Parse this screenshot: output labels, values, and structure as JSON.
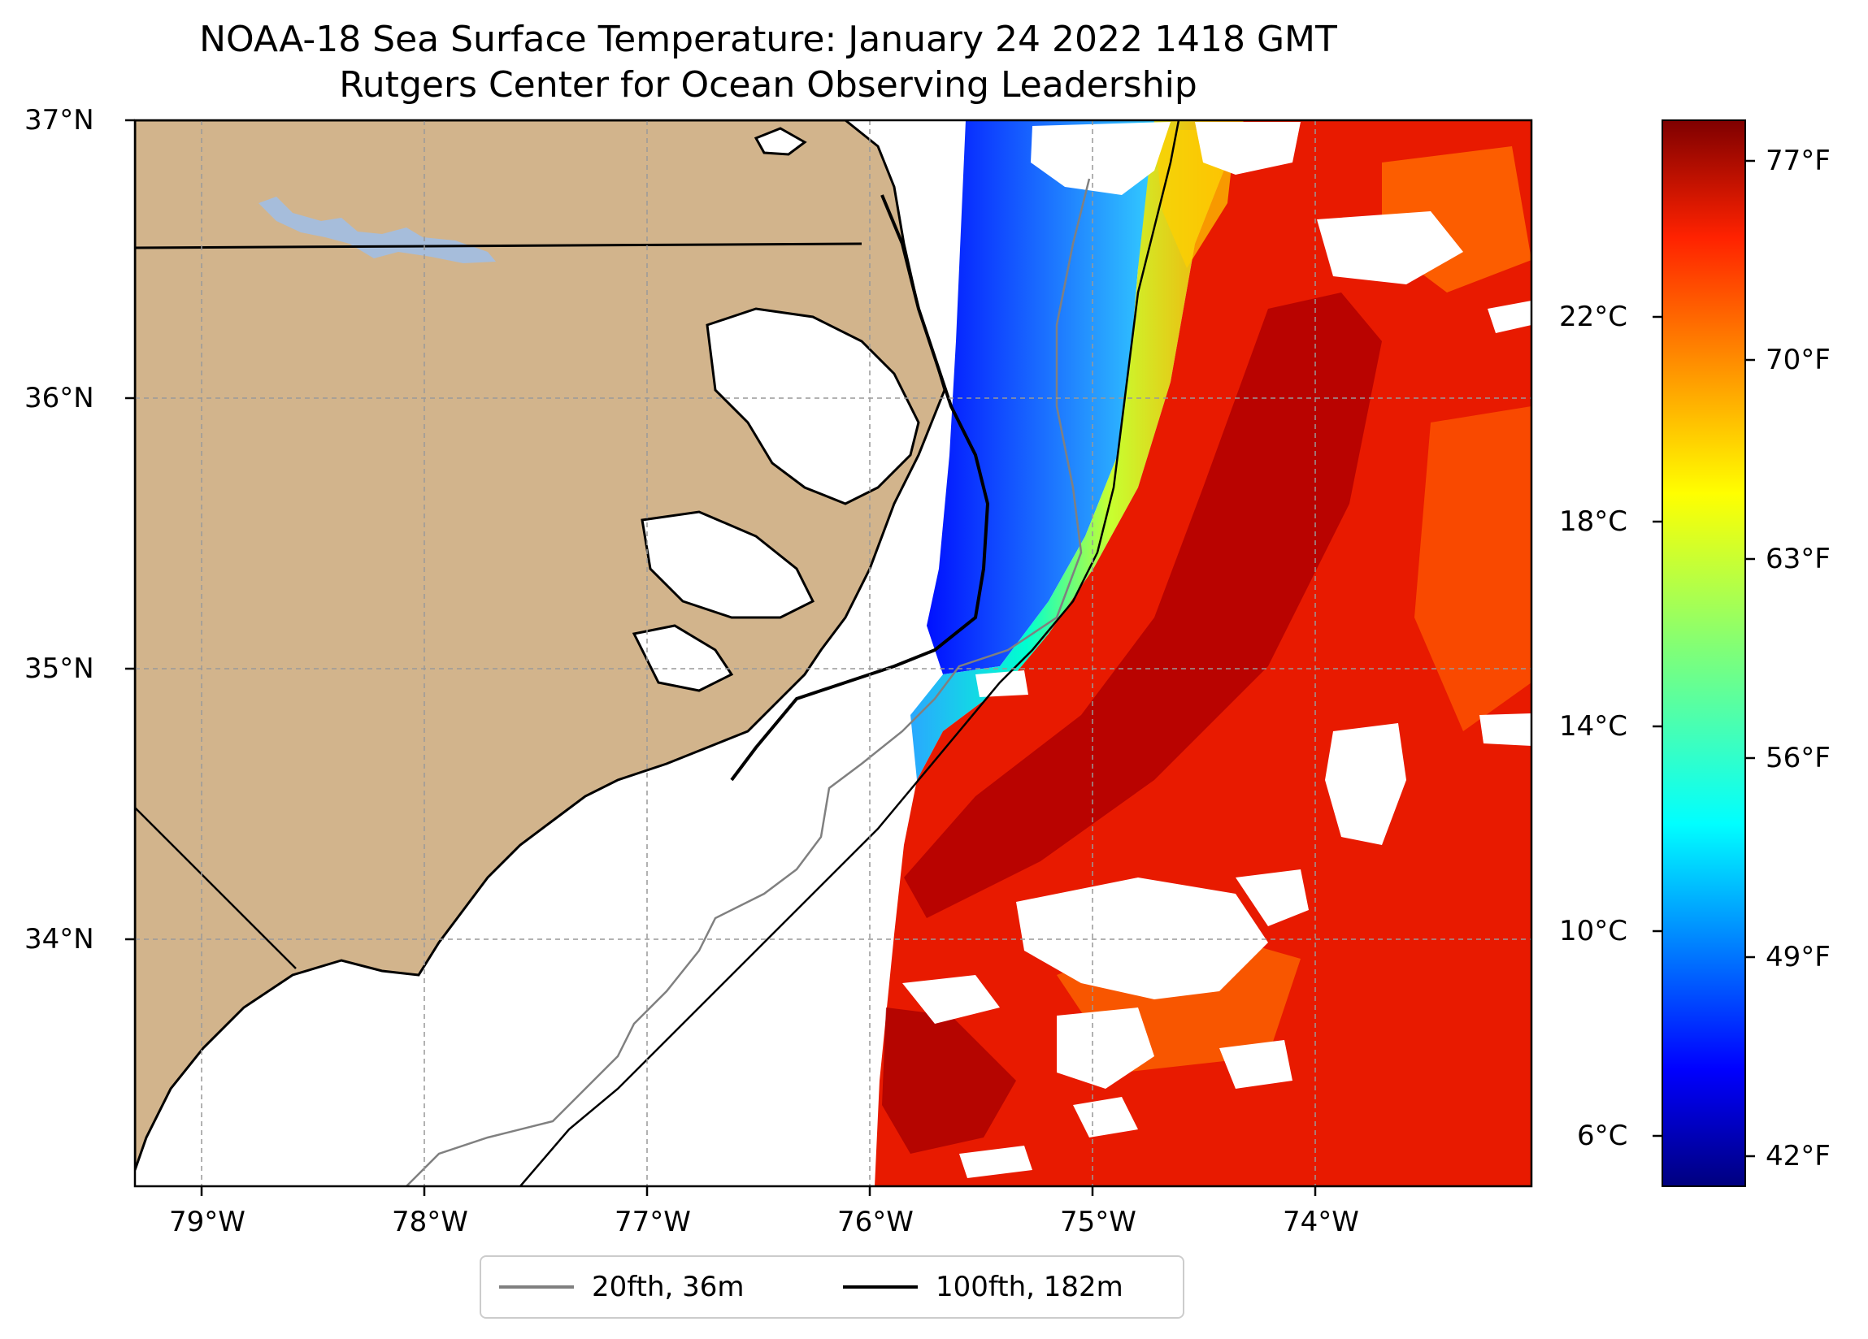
{
  "title": {
    "line1": "NOAA-18 Sea Surface Temperature: January 24 2022 1418 GMT",
    "line2": "Rutgers Center for Ocean Observing Leadership"
  },
  "map": {
    "lon_range": [
      -79.3,
      -73.1
    ],
    "lat_range": [
      33.1,
      37.0
    ],
    "lon_ticks": [
      {
        "value": -79,
        "label": "79°W"
      },
      {
        "value": -78,
        "label": "78°W"
      },
      {
        "value": -77,
        "label": "77°W"
      },
      {
        "value": -76,
        "label": "76°W"
      },
      {
        "value": -75,
        "label": "75°W"
      },
      {
        "value": -74,
        "label": "74°W"
      }
    ],
    "lat_ticks": [
      {
        "value": 37,
        "label": "37°N"
      },
      {
        "value": 36,
        "label": "36°N"
      },
      {
        "value": 35,
        "label": "35°N"
      },
      {
        "value": 34,
        "label": "34°N"
      }
    ],
    "gridlines": "dashed",
    "land_color": "#d2b48c",
    "water_body_color": "#a6bddb"
  },
  "colorbar": {
    "colormap": "jet",
    "celsius_ticks": [
      {
        "value": 22,
        "label": "22°C"
      },
      {
        "value": 18,
        "label": "18°C"
      },
      {
        "value": 14,
        "label": "14°C"
      },
      {
        "value": 10,
        "label": "10°C"
      },
      {
        "value": 6,
        "label": "6°C"
      }
    ],
    "fahrenheit_ticks": [
      {
        "value": 77,
        "label": "77°F"
      },
      {
        "value": 70,
        "label": "70°F"
      },
      {
        "value": 63,
        "label": "63°F"
      },
      {
        "value": 56,
        "label": "56°F"
      },
      {
        "value": 49,
        "label": "49°F"
      },
      {
        "value": 42,
        "label": "42°F"
      }
    ]
  },
  "legend": {
    "placement": "bottom-center",
    "entries": [
      {
        "label": "20fth, 36m",
        "color": "#808080"
      },
      {
        "label": "100fth, 182m",
        "color": "#000000"
      }
    ]
  }
}
